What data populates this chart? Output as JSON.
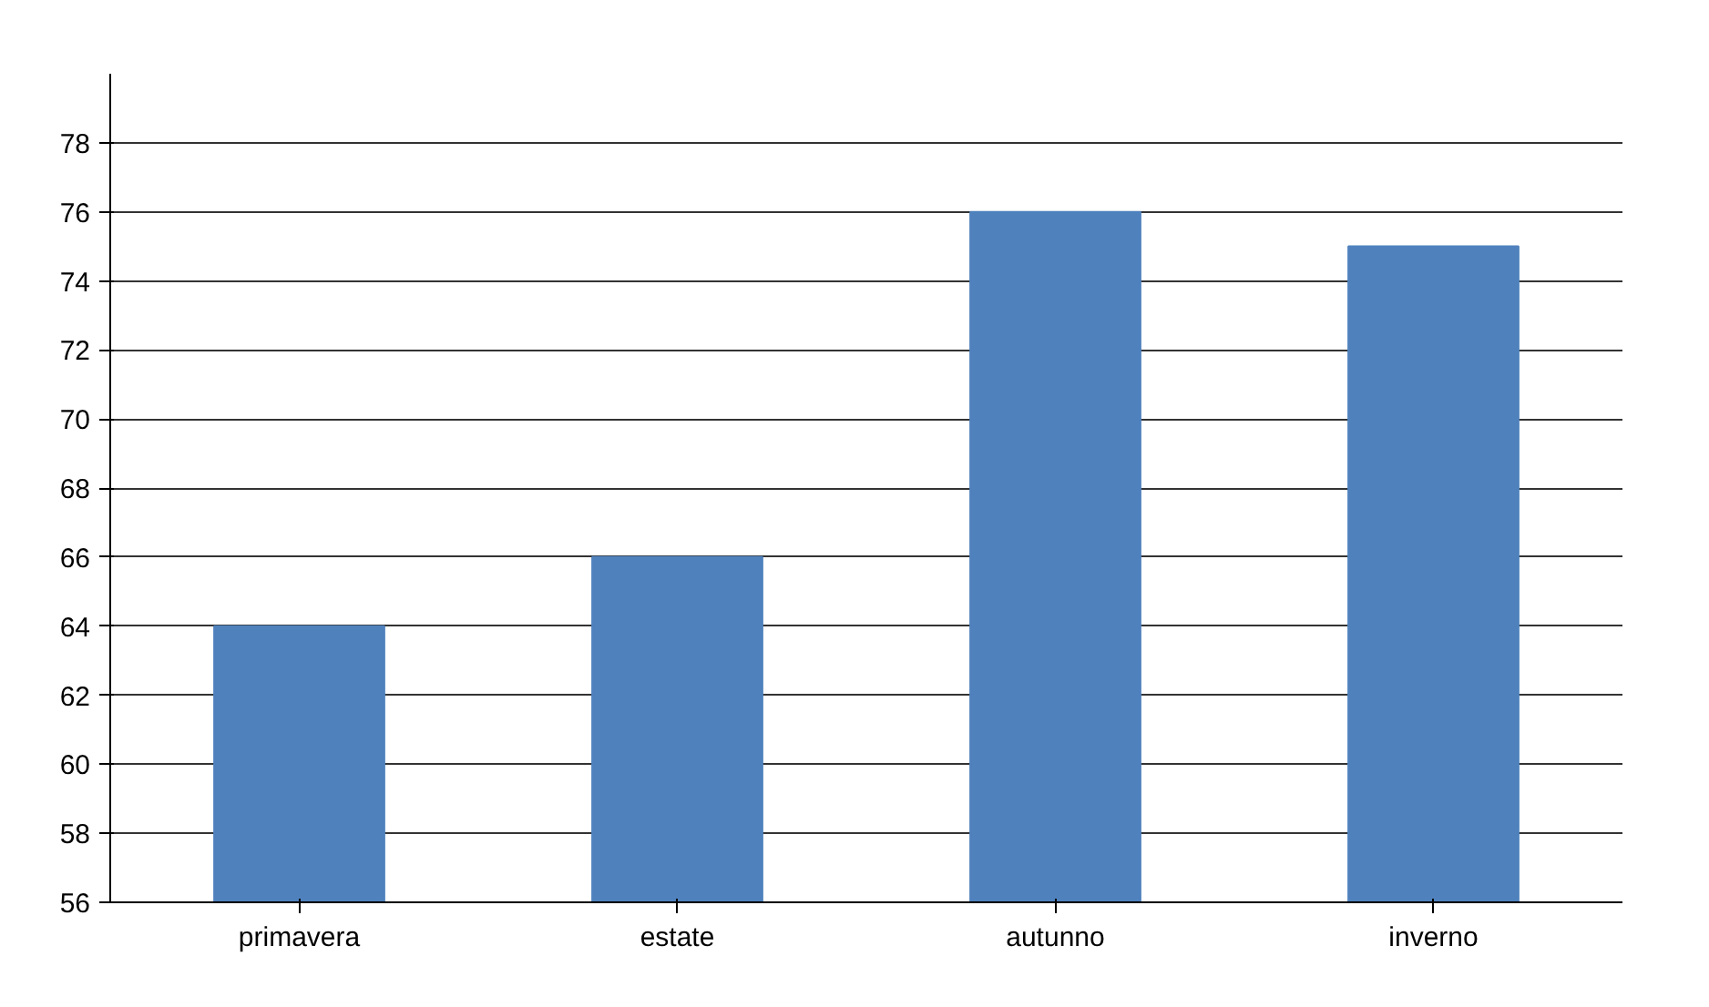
{
  "chart_data": {
    "type": "bar",
    "categories": [
      "primavera",
      "estate",
      "autunno",
      "inverno"
    ],
    "values": [
      64,
      66,
      76,
      75
    ],
    "color": "#4f81bd",
    "ylim": [
      56,
      80
    ],
    "yticks": [
      56,
      58,
      60,
      62,
      64,
      66,
      68,
      70,
      72,
      74,
      76,
      78
    ],
    "grid": "y"
  }
}
